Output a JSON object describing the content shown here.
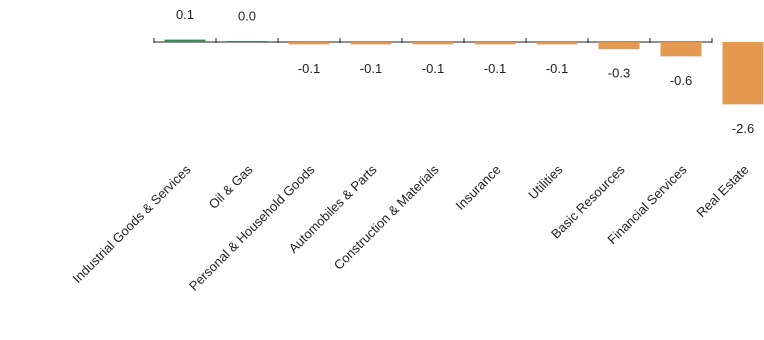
{
  "chart_data": {
    "type": "bar",
    "categories": [
      "Industrial Goods & Services",
      "Oil & Gas",
      "Personal & Household Goods",
      "Automobiles & Parts",
      "Construction & Materials",
      "Insurance",
      "Utilities",
      "Basic Resources",
      "Financial Services",
      "Real Estate"
    ],
    "values": [
      0.1,
      0.04,
      -0.1,
      -0.1,
      -0.1,
      -0.1,
      -0.1,
      -0.3,
      -0.6,
      -2.6
    ],
    "value_labels": [
      "0.1",
      "0.0",
      "-0.1",
      "-0.1",
      "-0.1",
      "-0.1",
      "-0.1",
      "-0.3",
      "-0.6",
      "-2.6"
    ],
    "positive_color": "#3b8b5c",
    "negative_color": "#e3994f"
  }
}
